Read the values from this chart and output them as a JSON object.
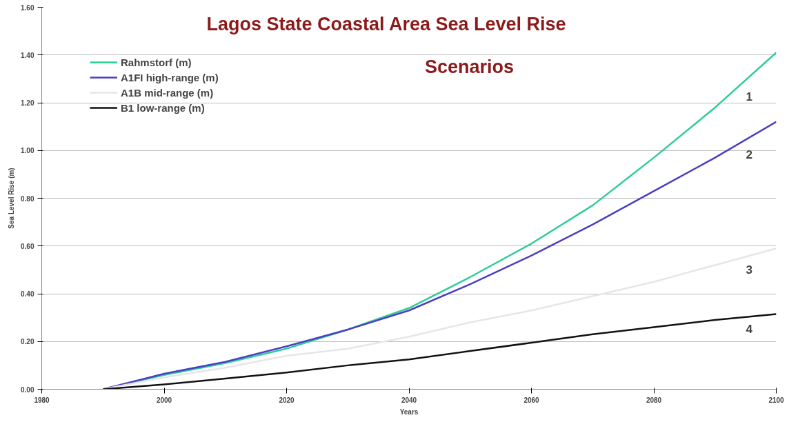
{
  "chart_data": {
    "type": "line",
    "title": "Lagos State Coastal Area Sea Level Rise Scenarios",
    "xlabel": "Years",
    "ylabel": "Sea Level Rise (m)",
    "x": [
      1990,
      2000,
      2010,
      2020,
      2030,
      2040,
      2050,
      2060,
      2070,
      2080,
      2090,
      2100
    ],
    "series": [
      {
        "name": "Rahmstorf (m)",
        "color": "#2ecc9a",
        "values": [
          0,
          0.06,
          0.11,
          0.17,
          0.25,
          0.34,
          0.47,
          0.61,
          0.77,
          0.97,
          1.18,
          1.41
        ]
      },
      {
        "name": "A1FI high-range (m)",
        "color": "#4a3fc4",
        "values": [
          0,
          0.065,
          0.115,
          0.18,
          0.25,
          0.33,
          0.44,
          0.56,
          0.69,
          0.83,
          0.97,
          1.12
        ]
      },
      {
        "name": "A1B mid-range (m)",
        "color": "#e6e6e6",
        "values": [
          0,
          0.05,
          0.09,
          0.14,
          0.17,
          0.22,
          0.28,
          0.33,
          0.39,
          0.45,
          0.52,
          0.59
        ]
      },
      {
        "name": "B1 low-range (m)",
        "color": "#111111",
        "values": [
          0,
          0.02,
          0.045,
          0.07,
          0.1,
          0.125,
          0.16,
          0.195,
          0.23,
          0.26,
          0.29,
          0.315
        ]
      }
    ],
    "xlim": [
      1980,
      2100
    ],
    "xticks": [
      1980,
      2000,
      2020,
      2040,
      2060,
      2080,
      2100
    ],
    "ylim": [
      0,
      1.6
    ],
    "yticks": [
      {
        "value": 0,
        "label": "0.00"
      },
      {
        "value": 0.2,
        "label": "0.20"
      },
      {
        "value": 0.4,
        "label": "0.40"
      },
      {
        "value": 0.6,
        "label": "0.60"
      },
      {
        "value": 0.8,
        "label": "0.80"
      },
      {
        "value": 1.0,
        "label": "1.00"
      },
      {
        "value": 1.2,
        "label": "1.20"
      },
      {
        "value": 1.4,
        "label": "1.40"
      },
      {
        "value": 1.6,
        "label": "1.60"
      }
    ],
    "annotations": [
      "1",
      "2",
      "3",
      "4"
    ],
    "grid": "y",
    "legend": "top left",
    "marker": "none",
    "line_style": "solid"
  }
}
